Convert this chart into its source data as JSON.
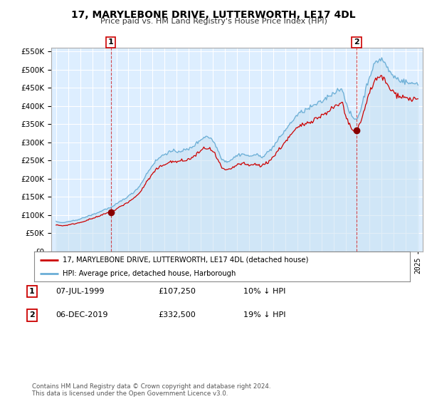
{
  "title": "17, MARYLEBONE DRIVE, LUTTERWORTH, LE17 4DL",
  "subtitle": "Price paid vs. HM Land Registry's House Price Index (HPI)",
  "legend_line1": "17, MARYLEBONE DRIVE, LUTTERWORTH, LE17 4DL (detached house)",
  "legend_line2": "HPI: Average price, detached house, Harborough",
  "table_rows": [
    {
      "num": "1",
      "date": "07-JUL-1999",
      "price": "£107,250",
      "rel": "10% ↓ HPI"
    },
    {
      "num": "2",
      "date": "06-DEC-2019",
      "price": "£332,500",
      "rel": "19% ↓ HPI"
    }
  ],
  "footnote": "Contains HM Land Registry data © Crown copyright and database right 2024.\nThis data is licensed under the Open Government Licence v3.0.",
  "ylim": [
    0,
    560000
  ],
  "yticks": [
    0,
    50000,
    100000,
    150000,
    200000,
    250000,
    300000,
    350000,
    400000,
    450000,
    500000,
    550000
  ],
  "hpi_color": "#6aaed6",
  "price_color": "#cc0000",
  "bg_color": "#ffffff",
  "plot_bg_color": "#ddeeff",
  "grid_color": "#ffffff",
  "sale1_year": 1999.54,
  "sale1_price": 107250,
  "sale2_year": 2019.92,
  "sale2_price": 332500,
  "fig_width": 6.0,
  "fig_height": 5.6,
  "dpi": 100
}
